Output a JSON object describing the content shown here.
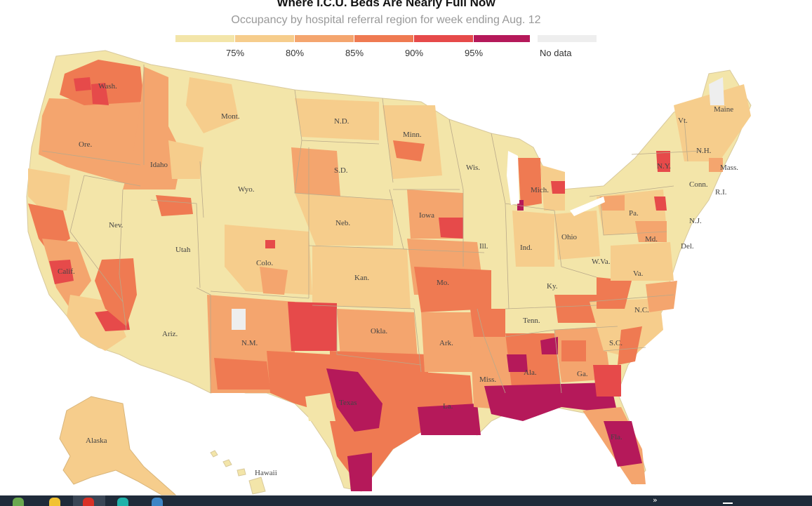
{
  "header": {
    "title": "Where I.C.U. Beds Are Nearly Full Now",
    "subtitle": "Occupancy by hospital referral region for week ending Aug. 12"
  },
  "legend": {
    "colors": [
      "#f3e5a9",
      "#f6cd8c",
      "#f4a56e",
      "#ef7a52",
      "#e64a4a",
      "#b5195a"
    ],
    "ticks": [
      "75%",
      "80%",
      "85%",
      "90%",
      "95%"
    ],
    "no_data_label": "No data",
    "no_data_color": "#eeeeee"
  },
  "map": {
    "land_color": "#f3e5a9",
    "border_color": "#b9a98a",
    "labels": {
      "wash": "Wash.",
      "ore": "Ore.",
      "idaho": "Idaho",
      "mont": "Mont.",
      "wyo": "Wyo.",
      "nev": "Nev.",
      "calif": "Calif.",
      "utah": "Utah",
      "colo": "Colo.",
      "ariz": "Ariz.",
      "nm": "N.M.",
      "nd": "N.D.",
      "sd": "S.D.",
      "neb": "Neb.",
      "kan": "Kan.",
      "okla": "Okla.",
      "texas": "Texas",
      "minn": "Minn.",
      "iowa": "Iowa",
      "mo": "Mo.",
      "ark": "Ark.",
      "la": "La.",
      "wis": "Wis.",
      "ill": "Ill.",
      "mich": "Mich.",
      "ind": "Ind.",
      "ohio": "Ohio",
      "ky": "Ky.",
      "tenn": "Tenn.",
      "miss": "Miss.",
      "ala": "Ala.",
      "ga": "Ga.",
      "fla": "Fla.",
      "sc": "S.C.",
      "nc": "N.C.",
      "va": "Va.",
      "wva": "W.Va.",
      "pa": "Pa.",
      "ny": "N.Y.",
      "md": "Md.",
      "del": "Del.",
      "nj": "N.J.",
      "conn": "Conn.",
      "ri": "R.I.",
      "mass": "Mass.",
      "nh": "N.H.",
      "vt": "Vt.",
      "maine": "Maine",
      "alaska": "Alaska",
      "hawaii": "Hawaii"
    }
  },
  "taskbar": {
    "icons": [
      "explorer-icon",
      "folder-icon",
      "chrome-icon",
      "edge-icon",
      "browser-icon"
    ],
    "overflow_glyph": "»"
  }
}
